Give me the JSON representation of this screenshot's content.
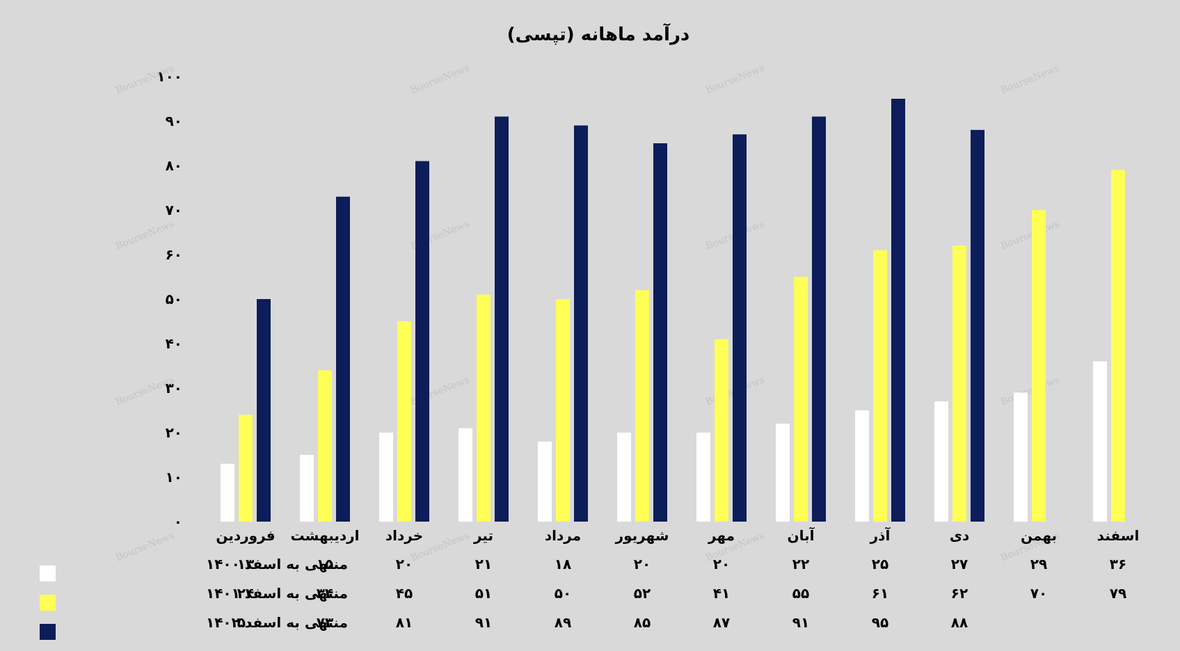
{
  "chart_data": {
    "type": "bar",
    "title": "درآمد ماهانه (تپسی)",
    "direction": "rtl",
    "categories": [
      "فروردین",
      "اردیبهشت",
      "خرداد",
      "تیر",
      "مرداد",
      "شهریور",
      "مهر",
      "آبان",
      "آذر",
      "دی",
      "بهمن",
      "اسفند"
    ],
    "series": [
      {
        "name": "منتهی به اسفد ۱۴۰۰",
        "color": "#ffffff",
        "values": [
          13,
          15,
          20,
          21,
          18,
          20,
          20,
          22,
          25,
          27,
          29,
          36
        ],
        "labels": [
          "۱۳",
          "۱۵",
          "۲۰",
          "۲۱",
          "۱۸",
          "۲۰",
          "۲۰",
          "۲۲",
          "۲۵",
          "۲۷",
          "۲۹",
          "۳۶"
        ]
      },
      {
        "name": "منتهی به اسفد ۱۴۰۱",
        "color": "#ffff55",
        "values": [
          24,
          34,
          45,
          51,
          50,
          52,
          41,
          55,
          61,
          62,
          70,
          79
        ],
        "labels": [
          "۲۴",
          "۳۴",
          "۴۵",
          "۵۱",
          "۵۰",
          "۵۲",
          "۴۱",
          "۵۵",
          "۶۱",
          "۶۲",
          "۷۰",
          "۷۹"
        ]
      },
      {
        "name": "منتهی به اسفد ۱۴۰۲",
        "color": "#0c1d5a",
        "values": [
          50,
          73,
          81,
          91,
          89,
          85,
          87,
          91,
          95,
          88,
          null,
          null
        ],
        "labels": [
          "۵۰",
          "۷۳",
          "۸۱",
          "۹۱",
          "۸۹",
          "۸۵",
          "۸۷",
          "۹۱",
          "۹۵",
          "۸۸",
          "",
          ""
        ]
      }
    ],
    "ylim": [
      0,
      100
    ],
    "yticks": [
      {
        "value": 0,
        "label": "۰"
      },
      {
        "value": 10,
        "label": "۱۰"
      },
      {
        "value": 20,
        "label": "۲۰"
      },
      {
        "value": 30,
        "label": "۳۰"
      },
      {
        "value": 40,
        "label": "۴۰"
      },
      {
        "value": 50,
        "label": "۵۰"
      },
      {
        "value": 60,
        "label": "۶۰"
      },
      {
        "value": 70,
        "label": "۷۰"
      },
      {
        "value": 80,
        "label": "۸۰"
      },
      {
        "value": 90,
        "label": "۹۰"
      },
      {
        "value": 100,
        "label": "۱۰۰"
      }
    ],
    "grid": false,
    "legend": "data-table-left",
    "background": "#d9d9d9"
  },
  "watermark": "BourseNews"
}
